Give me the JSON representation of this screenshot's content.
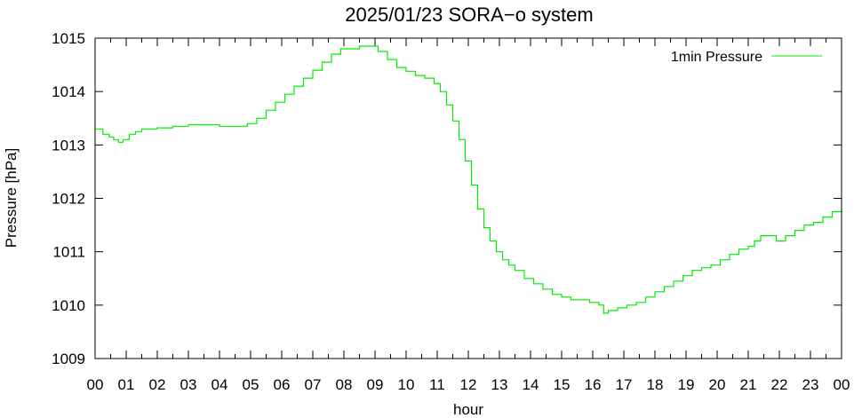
{
  "chart_data": {
    "type": "line",
    "title": "2025/01/23 SORA−o system",
    "xlabel": "hour",
    "ylabel": "Pressure [hPa]",
    "xlim": [
      0,
      24
    ],
    "ylim": [
      1009,
      1015
    ],
    "x_ticks": [
      "00",
      "01",
      "02",
      "03",
      "04",
      "05",
      "06",
      "07",
      "08",
      "09",
      "10",
      "11",
      "12",
      "13",
      "14",
      "15",
      "16",
      "17",
      "18",
      "19",
      "20",
      "21",
      "22",
      "23",
      "00"
    ],
    "y_ticks": [
      "1009",
      "1010",
      "1011",
      "1012",
      "1013",
      "1014",
      "1015"
    ],
    "grid": false,
    "legend_position": "top-right",
    "series": [
      {
        "name": "1min Pressure",
        "color": "#00ee00",
        "x": [
          0.0,
          0.25,
          0.45,
          0.6,
          0.75,
          0.9,
          1.1,
          1.3,
          1.5,
          1.7,
          2.0,
          2.5,
          3.0,
          3.5,
          4.0,
          4.5,
          4.9,
          5.2,
          5.5,
          5.8,
          6.1,
          6.4,
          6.7,
          7.0,
          7.3,
          7.6,
          7.9,
          8.2,
          8.5,
          8.8,
          9.1,
          9.4,
          9.7,
          10.0,
          10.3,
          10.6,
          10.9,
          11.1,
          11.3,
          11.5,
          11.7,
          11.9,
          12.1,
          12.3,
          12.5,
          12.7,
          12.9,
          13.1,
          13.3,
          13.5,
          13.8,
          14.1,
          14.4,
          14.7,
          15.0,
          15.3,
          15.6,
          15.9,
          16.2,
          16.35,
          16.5,
          16.8,
          17.1,
          17.4,
          17.7,
          18.0,
          18.3,
          18.6,
          18.9,
          19.2,
          19.5,
          19.8,
          20.1,
          20.4,
          20.7,
          21.0,
          21.2,
          21.4,
          21.6,
          21.9,
          22.2,
          22.5,
          22.8,
          23.1,
          23.4,
          23.7,
          24.0
        ],
        "values": [
          1013.3,
          1013.2,
          1013.15,
          1013.1,
          1013.05,
          1013.1,
          1013.2,
          1013.25,
          1013.3,
          1013.3,
          1013.32,
          1013.35,
          1013.38,
          1013.38,
          1013.35,
          1013.35,
          1013.4,
          1013.5,
          1013.65,
          1013.8,
          1013.95,
          1014.1,
          1014.25,
          1014.4,
          1014.55,
          1014.7,
          1014.8,
          1014.8,
          1014.85,
          1014.85,
          1014.75,
          1014.6,
          1014.45,
          1014.38,
          1014.3,
          1014.25,
          1014.15,
          1014.0,
          1013.75,
          1013.45,
          1013.1,
          1012.7,
          1012.25,
          1011.8,
          1011.45,
          1011.2,
          1011.0,
          1010.85,
          1010.75,
          1010.65,
          1010.5,
          1010.4,
          1010.3,
          1010.2,
          1010.15,
          1010.1,
          1010.1,
          1010.05,
          1010.0,
          1009.85,
          1009.9,
          1009.95,
          1010.0,
          1010.05,
          1010.15,
          1010.25,
          1010.35,
          1010.45,
          1010.55,
          1010.65,
          1010.7,
          1010.75,
          1010.85,
          1010.95,
          1011.05,
          1011.1,
          1011.2,
          1011.3,
          1011.3,
          1011.2,
          1011.3,
          1011.4,
          1011.5,
          1011.55,
          1011.65,
          1011.75,
          1011.8
        ]
      }
    ]
  }
}
